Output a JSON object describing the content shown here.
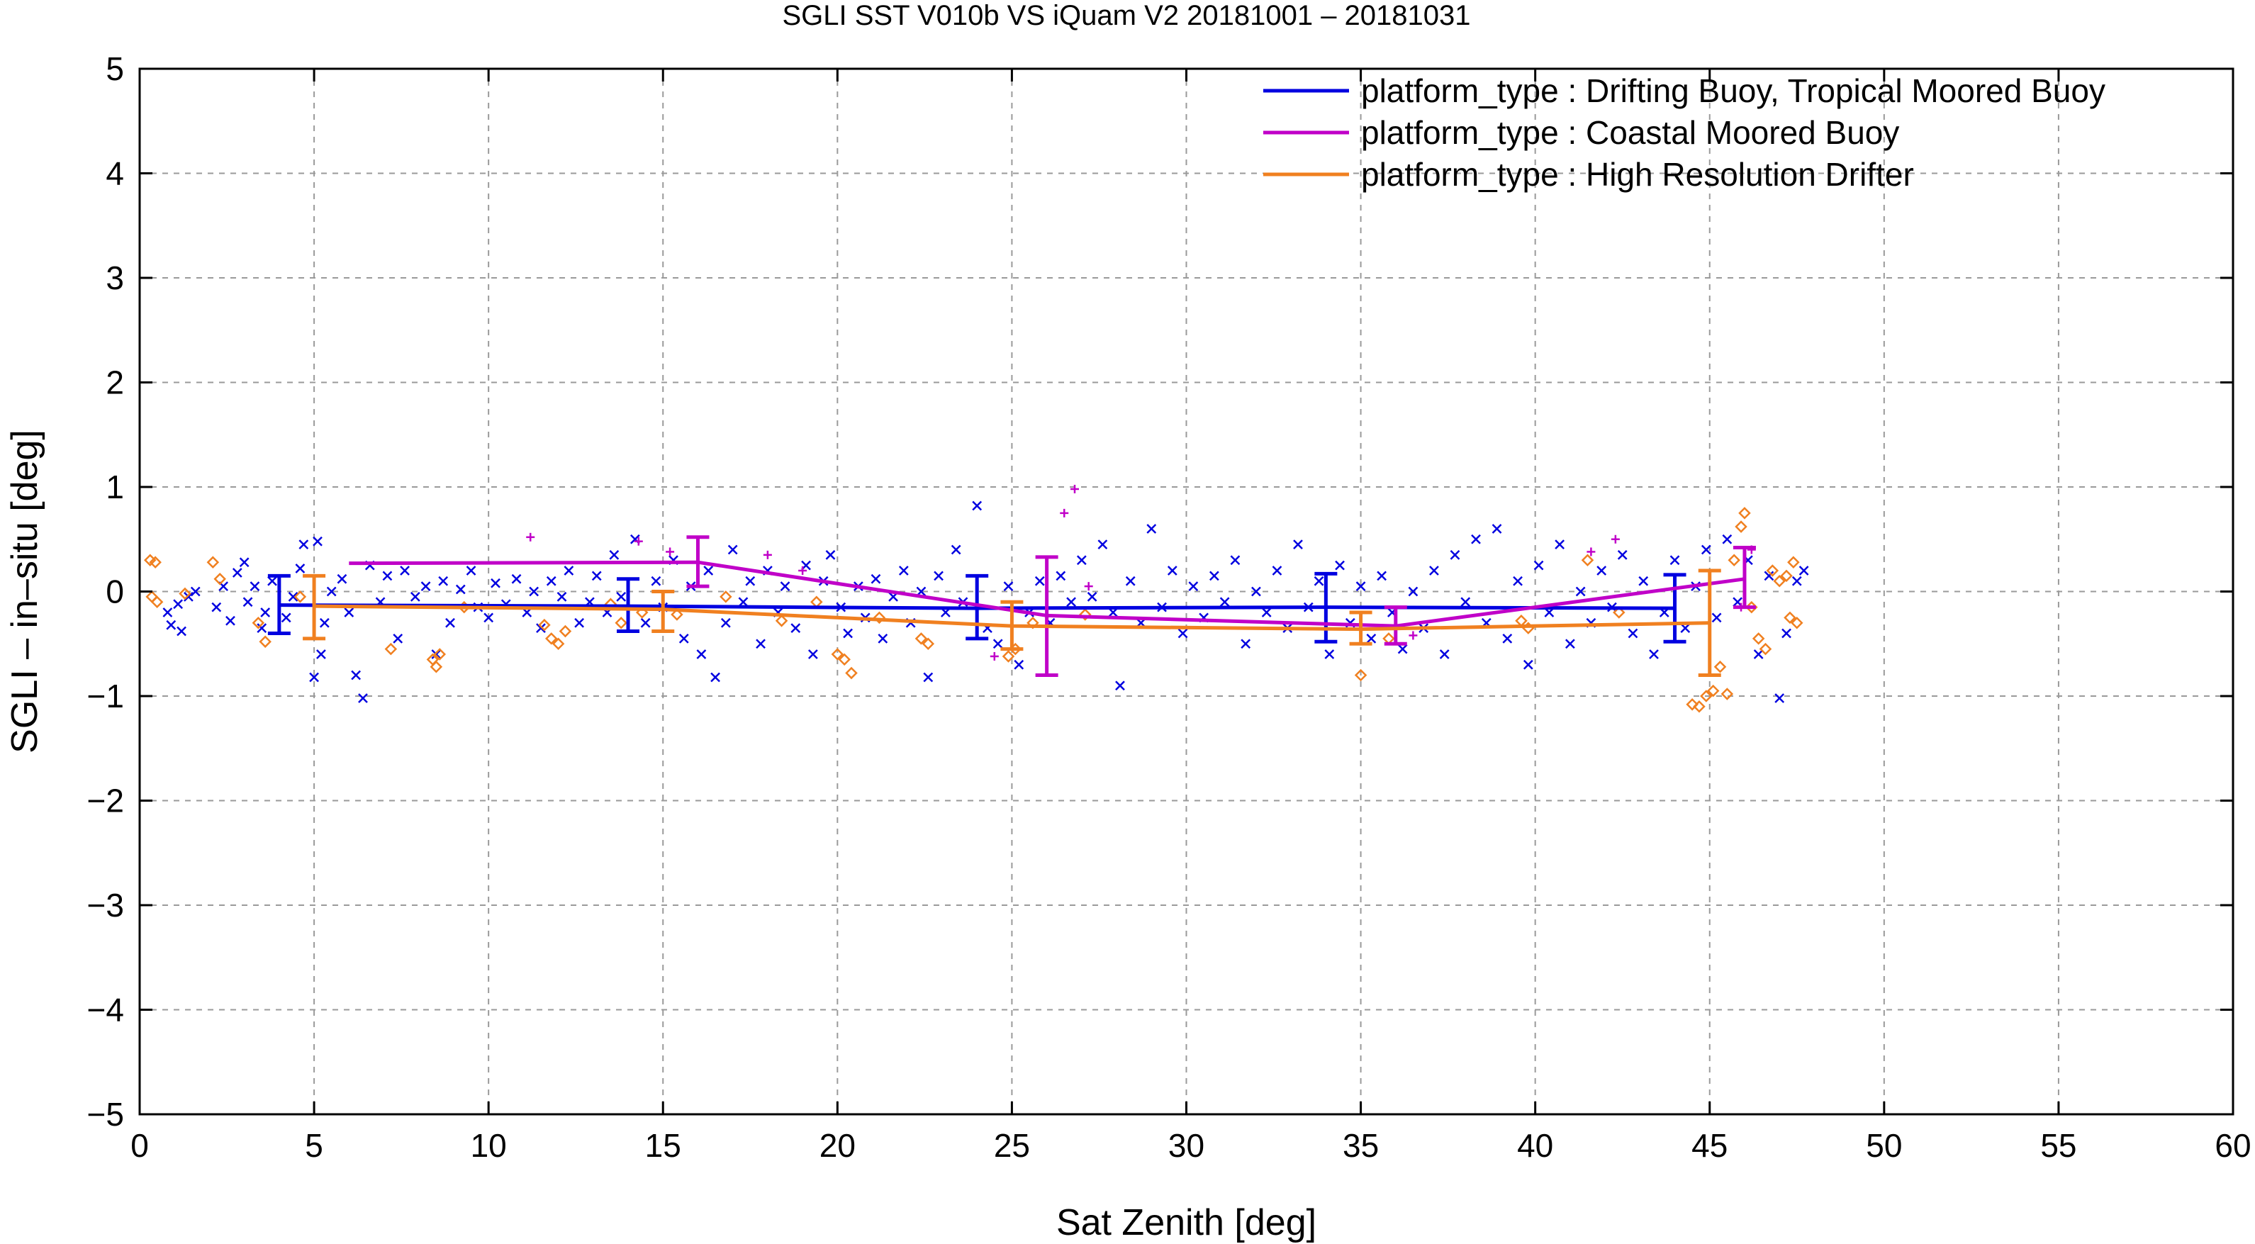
{
  "chart_data": {
    "type": "scatter",
    "title": "SGLI SST V010b VS iQuam V2 20181001 – 20181031",
    "xlabel": "Sat Zenith [deg]",
    "ylabel": "SGLI – in–situ [deg]",
    "xlim": [
      0,
      60
    ],
    "ylim": [
      -5,
      5
    ],
    "x_ticks": [
      0,
      5,
      10,
      15,
      20,
      25,
      30,
      35,
      40,
      45,
      50,
      55,
      60
    ],
    "x_tick_labels": [
      "0",
      "5",
      "10",
      "15",
      "20",
      "25",
      "30",
      "35",
      "40",
      "45",
      "50",
      "55",
      "60"
    ],
    "y_ticks": [
      -5,
      -4,
      -3,
      -2,
      -1,
      0,
      1,
      2,
      3,
      4,
      5
    ],
    "y_tick_labels": [
      "−5",
      "−4",
      "−3",
      "−2",
      "−1",
      "0",
      "1",
      "2",
      "3",
      "4",
      "5"
    ],
    "grid": true,
    "legend_position": "top-right",
    "series": [
      {
        "name": "platform_type : Drifting Buoy, Tropical Moored Buoy",
        "color": "#0000e0",
        "marker": "cross",
        "mean_line": {
          "x": [
            4,
            14,
            24,
            34,
            44
          ],
          "y": [
            -0.13,
            -0.14,
            -0.16,
            -0.15,
            -0.16
          ],
          "err_low": [
            -0.4,
            -0.38,
            -0.45,
            -0.48,
            -0.48
          ],
          "err_high": [
            0.15,
            0.12,
            0.15,
            0.17,
            0.16
          ]
        },
        "points": [
          [
            0.8,
            -0.2
          ],
          [
            0.9,
            -0.32
          ],
          [
            1.1,
            -0.12
          ],
          [
            1.2,
            -0.38
          ],
          [
            1.4,
            -0.05
          ],
          [
            1.6,
            0.0
          ],
          [
            2.2,
            -0.15
          ],
          [
            2.4,
            0.05
          ],
          [
            2.6,
            -0.28
          ],
          [
            2.8,
            0.18
          ],
          [
            3.0,
            0.28
          ],
          [
            3.1,
            -0.1
          ],
          [
            3.3,
            0.05
          ],
          [
            3.5,
            -0.35
          ],
          [
            3.6,
            -0.2
          ],
          [
            3.8,
            0.1
          ],
          [
            4.2,
            -0.25
          ],
          [
            4.4,
            -0.05
          ],
          [
            4.6,
            0.22
          ],
          [
            4.7,
            0.45
          ],
          [
            5.0,
            -0.82
          ],
          [
            5.1,
            0.48
          ],
          [
            5.2,
            -0.6
          ],
          [
            5.3,
            -0.3
          ],
          [
            5.5,
            0.0
          ],
          [
            5.8,
            0.12
          ],
          [
            6.0,
            -0.2
          ],
          [
            6.2,
            -0.8
          ],
          [
            6.4,
            -1.02
          ],
          [
            6.6,
            0.25
          ],
          [
            6.9,
            -0.1
          ],
          [
            7.1,
            0.15
          ],
          [
            7.4,
            -0.45
          ],
          [
            7.6,
            0.2
          ],
          [
            7.9,
            -0.05
          ],
          [
            8.2,
            0.05
          ],
          [
            8.5,
            -0.6
          ],
          [
            8.7,
            0.1
          ],
          [
            8.9,
            -0.3
          ],
          [
            9.2,
            0.02
          ],
          [
            9.5,
            0.2
          ],
          [
            9.7,
            -0.15
          ],
          [
            10.0,
            -0.25
          ],
          [
            10.2,
            0.08
          ],
          [
            10.5,
            -0.12
          ],
          [
            10.8,
            0.12
          ],
          [
            11.1,
            -0.2
          ],
          [
            11.3,
            0.0
          ],
          [
            11.5,
            -0.35
          ],
          [
            11.8,
            0.1
          ],
          [
            12.1,
            -0.05
          ],
          [
            12.3,
            0.2
          ],
          [
            12.6,
            -0.3
          ],
          [
            12.9,
            -0.1
          ],
          [
            13.1,
            0.15
          ],
          [
            13.4,
            -0.2
          ],
          [
            13.6,
            0.35
          ],
          [
            13.8,
            -0.05
          ],
          [
            14.2,
            0.5
          ],
          [
            14.5,
            -0.3
          ],
          [
            14.8,
            0.1
          ],
          [
            15.0,
            -0.15
          ],
          [
            15.3,
            0.3
          ],
          [
            15.6,
            -0.45
          ],
          [
            15.8,
            0.05
          ],
          [
            16.1,
            -0.6
          ],
          [
            16.3,
            0.2
          ],
          [
            16.5,
            -0.82
          ],
          [
            16.8,
            -0.3
          ],
          [
            17.0,
            0.4
          ],
          [
            17.3,
            -0.1
          ],
          [
            17.5,
            0.1
          ],
          [
            17.8,
            -0.5
          ],
          [
            18.0,
            0.2
          ],
          [
            18.3,
            -0.2
          ],
          [
            18.5,
            0.05
          ],
          [
            18.8,
            -0.35
          ],
          [
            19.1,
            0.25
          ],
          [
            19.3,
            -0.6
          ],
          [
            19.6,
            0.1
          ],
          [
            19.8,
            0.35
          ],
          [
            20.1,
            -0.15
          ],
          [
            20.3,
            -0.4
          ],
          [
            20.6,
            0.05
          ],
          [
            20.8,
            -0.25
          ],
          [
            21.1,
            0.12
          ],
          [
            21.3,
            -0.45
          ],
          [
            21.6,
            -0.05
          ],
          [
            21.9,
            0.2
          ],
          [
            22.1,
            -0.3
          ],
          [
            22.4,
            0.0
          ],
          [
            22.6,
            -0.82
          ],
          [
            22.9,
            0.15
          ],
          [
            23.1,
            -0.2
          ],
          [
            23.4,
            0.4
          ],
          [
            23.6,
            -0.1
          ],
          [
            24.0,
            0.82
          ],
          [
            24.3,
            -0.35
          ],
          [
            24.6,
            -0.5
          ],
          [
            24.9,
            0.05
          ],
          [
            25.2,
            -0.7
          ],
          [
            25.5,
            -0.2
          ],
          [
            25.8,
            0.1
          ],
          [
            26.1,
            -0.3
          ],
          [
            26.4,
            0.15
          ],
          [
            26.7,
            -0.1
          ],
          [
            27.0,
            0.3
          ],
          [
            27.3,
            -0.05
          ],
          [
            27.6,
            0.45
          ],
          [
            27.9,
            -0.2
          ],
          [
            28.1,
            -0.9
          ],
          [
            28.4,
            0.1
          ],
          [
            28.7,
            -0.3
          ],
          [
            29.0,
            0.6
          ],
          [
            29.3,
            -0.15
          ],
          [
            29.6,
            0.2
          ],
          [
            29.9,
            -0.4
          ],
          [
            30.2,
            0.05
          ],
          [
            30.5,
            -0.25
          ],
          [
            30.8,
            0.15
          ],
          [
            31.1,
            -0.1
          ],
          [
            31.4,
            0.3
          ],
          [
            31.7,
            -0.5
          ],
          [
            32.0,
            0.0
          ],
          [
            32.3,
            -0.2
          ],
          [
            32.6,
            0.2
          ],
          [
            32.9,
            -0.35
          ],
          [
            33.2,
            0.45
          ],
          [
            33.5,
            -0.15
          ],
          [
            33.8,
            0.1
          ],
          [
            34.1,
            -0.6
          ],
          [
            34.4,
            0.25
          ],
          [
            34.7,
            -0.3
          ],
          [
            35.0,
            0.05
          ],
          [
            35.3,
            -0.45
          ],
          [
            35.6,
            0.15
          ],
          [
            35.9,
            -0.2
          ],
          [
            36.2,
            -0.55
          ],
          [
            36.5,
            0.0
          ],
          [
            36.8,
            -0.35
          ],
          [
            37.1,
            0.2
          ],
          [
            37.4,
            -0.6
          ],
          [
            37.7,
            0.35
          ],
          [
            38.0,
            -0.1
          ],
          [
            38.3,
            0.5
          ],
          [
            38.6,
            -0.3
          ],
          [
            38.9,
            0.6
          ],
          [
            39.2,
            -0.45
          ],
          [
            39.5,
            0.1
          ],
          [
            39.8,
            -0.7
          ],
          [
            40.1,
            0.25
          ],
          [
            40.4,
            -0.2
          ],
          [
            40.7,
            0.45
          ],
          [
            41.0,
            -0.5
          ],
          [
            41.3,
            0.0
          ],
          [
            41.6,
            -0.3
          ],
          [
            41.9,
            0.2
          ],
          [
            42.2,
            -0.15
          ],
          [
            42.5,
            0.35
          ],
          [
            42.8,
            -0.4
          ],
          [
            43.1,
            0.1
          ],
          [
            43.4,
            -0.6
          ],
          [
            43.7,
            -0.2
          ],
          [
            44.0,
            0.3
          ],
          [
            44.3,
            -0.35
          ],
          [
            44.6,
            0.05
          ],
          [
            44.9,
            0.4
          ],
          [
            45.2,
            -0.25
          ],
          [
            45.5,
            0.5
          ],
          [
            45.8,
            -0.1
          ],
          [
            46.1,
            0.3
          ],
          [
            46.4,
            -0.6
          ],
          [
            46.7,
            0.15
          ],
          [
            47.0,
            -1.02
          ],
          [
            47.2,
            -0.4
          ],
          [
            47.5,
            0.1
          ],
          [
            47.7,
            0.2
          ]
        ]
      },
      {
        "name": "platform_type : Coastal Moored Buoy",
        "color": "#c000c8",
        "marker": "plus",
        "mean_line": {
          "x": [
            6,
            16,
            26,
            36,
            46
          ],
          "y": [
            0.27,
            0.28,
            -0.23,
            -0.33,
            0.12
          ],
          "err_low": [
            0.27,
            0.05,
            -0.8,
            -0.5,
            -0.15
          ],
          "err_high": [
            0.27,
            0.52,
            0.33,
            -0.15,
            0.42
          ]
        },
        "points": [
          [
            11.2,
            0.52
          ],
          [
            14.3,
            0.48
          ],
          [
            15.2,
            0.38
          ],
          [
            18.0,
            0.35
          ],
          [
            19.0,
            0.2
          ],
          [
            24.5,
            -0.62
          ],
          [
            26.5,
            0.75
          ],
          [
            26.8,
            0.98
          ],
          [
            27.2,
            0.05
          ],
          [
            36.5,
            -0.42
          ],
          [
            41.6,
            0.38
          ],
          [
            42.3,
            0.5
          ],
          [
            45.9,
            -0.15
          ],
          [
            46.2,
            0.4
          ]
        ]
      },
      {
        "name": "platform_type : High Resolution Drifter",
        "color": "#f08020",
        "marker": "diamond",
        "mean_line": {
          "x": [
            5,
            15,
            25,
            35,
            45
          ],
          "y": [
            -0.14,
            -0.17,
            -0.33,
            -0.36,
            -0.3
          ],
          "err_low": [
            -0.45,
            -0.38,
            -0.55,
            -0.5,
            -0.8
          ],
          "err_high": [
            0.15,
            0.0,
            -0.1,
            -0.2,
            0.2
          ]
        },
        "points": [
          [
            0.3,
            0.3
          ],
          [
            0.35,
            -0.05
          ],
          [
            0.45,
            0.28
          ],
          [
            0.5,
            -0.1
          ],
          [
            1.3,
            -0.02
          ],
          [
            2.1,
            0.28
          ],
          [
            2.3,
            0.12
          ],
          [
            3.4,
            -0.3
          ],
          [
            3.6,
            -0.48
          ],
          [
            4.6,
            -0.05
          ],
          [
            7.2,
            -0.55
          ],
          [
            8.4,
            -0.65
          ],
          [
            8.5,
            -0.72
          ],
          [
            8.6,
            -0.6
          ],
          [
            9.3,
            -0.15
          ],
          [
            11.6,
            -0.32
          ],
          [
            11.8,
            -0.45
          ],
          [
            12.0,
            -0.5
          ],
          [
            12.2,
            -0.38
          ],
          [
            13.5,
            -0.12
          ],
          [
            13.8,
            -0.3
          ],
          [
            14.4,
            -0.2
          ],
          [
            15.4,
            -0.22
          ],
          [
            16.8,
            -0.05
          ],
          [
            18.4,
            -0.28
          ],
          [
            19.4,
            -0.1
          ],
          [
            20.0,
            -0.6
          ],
          [
            20.2,
            -0.65
          ],
          [
            20.4,
            -0.78
          ],
          [
            21.2,
            -0.25
          ],
          [
            22.4,
            -0.45
          ],
          [
            22.6,
            -0.5
          ],
          [
            24.9,
            -0.62
          ],
          [
            25.1,
            -0.55
          ],
          [
            25.6,
            -0.3
          ],
          [
            27.1,
            -0.22
          ],
          [
            35.0,
            -0.8
          ],
          [
            35.8,
            -0.45
          ],
          [
            39.6,
            -0.28
          ],
          [
            39.8,
            -0.35
          ],
          [
            41.5,
            0.3
          ],
          [
            42.4,
            -0.2
          ],
          [
            44.5,
            -1.08
          ],
          [
            44.7,
            -1.1
          ],
          [
            44.9,
            -1.0
          ],
          [
            45.1,
            -0.95
          ],
          [
            45.3,
            -0.72
          ],
          [
            45.5,
            -0.98
          ],
          [
            45.7,
            0.3
          ],
          [
            45.9,
            0.62
          ],
          [
            46.0,
            0.75
          ],
          [
            46.2,
            -0.15
          ],
          [
            46.4,
            -0.45
          ],
          [
            46.6,
            -0.55
          ],
          [
            46.8,
            0.2
          ],
          [
            47.0,
            0.1
          ],
          [
            47.2,
            0.15
          ],
          [
            47.3,
            -0.25
          ],
          [
            47.4,
            0.28
          ],
          [
            47.5,
            -0.3
          ]
        ]
      }
    ]
  }
}
